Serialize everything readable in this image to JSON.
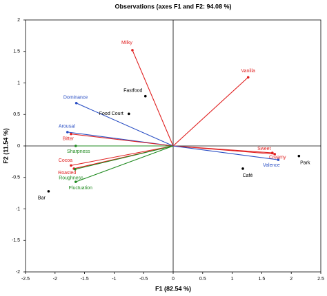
{
  "chart_data": {
    "type": "biplot",
    "title": "Observations (axes F1 and F2: 94.08 %)",
    "x_label": "F1 (82.54 %)",
    "y_label": "F2 (11.54 %)",
    "xlim": [
      -2.5,
      2.5
    ],
    "ylim": [
      -2,
      2
    ],
    "xticks": [
      -2.5,
      -2,
      -1.5,
      -1,
      -0.5,
      0,
      0.5,
      1,
      1.5,
      2,
      2.5
    ],
    "yticks": [
      -2,
      -1.5,
      -1,
      -0.5,
      0,
      0.5,
      1,
      1.5,
      2
    ],
    "variables": [
      {
        "label": "Milky",
        "x": -0.69,
        "y": 1.52,
        "color": "#e02020"
      },
      {
        "label": "Vanilla",
        "x": 1.27,
        "y": 1.09,
        "color": "#e02020"
      },
      {
        "label": "Dominance",
        "x": -1.64,
        "y": 0.68,
        "color": "#2a4fc4"
      },
      {
        "label": "Arousal",
        "x": -1.79,
        "y": 0.22,
        "color": "#2a4fc4"
      },
      {
        "label": "Bitter",
        "x": -1.73,
        "y": 0.19,
        "color": "#e02020"
      },
      {
        "label": "Sharpness",
        "x": -1.65,
        "y": 0.0,
        "color": "#1f8a1f"
      },
      {
        "label": "Cocoa",
        "x": -1.73,
        "y": -0.31,
        "color": "#e02020"
      },
      {
        "label": "Roasted",
        "x": -1.68,
        "y": -0.36,
        "color": "#e02020"
      },
      {
        "label": "Roughness",
        "x": -1.66,
        "y": -0.37,
        "color": "#1f8a1f"
      },
      {
        "label": "Fluctuation",
        "x": -1.65,
        "y": -0.57,
        "color": "#1f8a1f"
      },
      {
        "label": "Sweet",
        "x": 1.68,
        "y": -0.11,
        "color": "#e02020"
      },
      {
        "label": "Creamy",
        "x": 1.72,
        "y": -0.13,
        "color": "#e02020"
      },
      {
        "label": "Valence",
        "x": 1.78,
        "y": -0.22,
        "color": "#2a4fc4"
      }
    ],
    "observations": [
      {
        "label": "Fastfood",
        "x": -0.47,
        "y": 0.79
      },
      {
        "label": "Food Court",
        "x": -0.75,
        "y": 0.51
      },
      {
        "label": "Bar",
        "x": -2.11,
        "y": -0.72
      },
      {
        "label": "Café",
        "x": 1.18,
        "y": -0.36
      },
      {
        "label": "Park",
        "x": 2.13,
        "y": -0.16
      }
    ],
    "observation_color": "#000000"
  }
}
